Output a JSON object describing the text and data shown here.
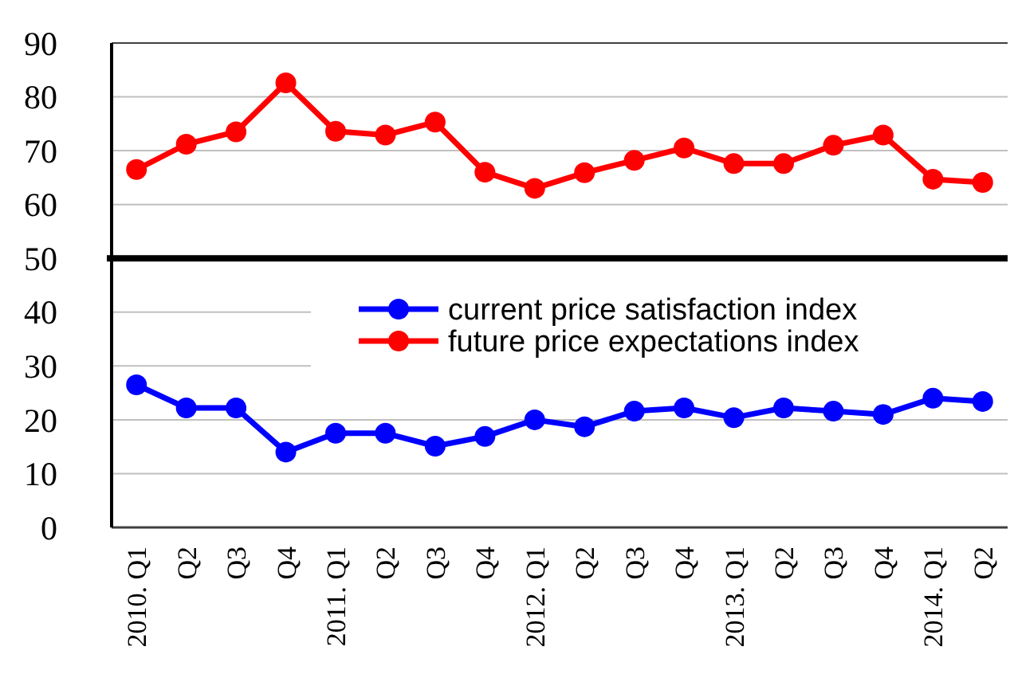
{
  "chart_data": {
    "type": "line",
    "categories": [
      "2010. Q1",
      "Q2",
      "Q3",
      "Q4",
      "2011. Q1",
      "Q2",
      "Q3",
      "Q4",
      "2012. Q1",
      "Q2",
      "Q3",
      "Q4",
      "2013. Q1",
      "Q2",
      "Q3",
      "Q4",
      "2014. Q1",
      "Q2"
    ],
    "series": [
      {
        "name": "current price satisfaction index",
        "color": "#0000ff",
        "values": [
          26.5,
          22.2,
          22.2,
          14,
          17.5,
          17.5,
          15.1,
          16.9,
          20,
          18.7,
          21.6,
          22.2,
          20.4,
          22.2,
          21.6,
          21,
          24,
          23.4
        ]
      },
      {
        "name": "future price expectations index",
        "color": "#ff0000",
        "values": [
          66.5,
          71.2,
          73.5,
          82.6,
          73.6,
          72.9,
          75.3,
          66,
          63,
          65.9,
          68.2,
          70.5,
          67.6,
          67.6,
          71,
          72.9,
          64.7,
          64.1
        ]
      }
    ],
    "ylim": [
      0,
      90
    ],
    "yticks": [
      0,
      10,
      20,
      30,
      40,
      50,
      60,
      70,
      80,
      90
    ],
    "grid": "y",
    "legend": "center right",
    "marker": "circle",
    "line_style": "solid",
    "ref_lines": [
      {
        "axis": "y",
        "value": 50,
        "color": "#000000"
      }
    ]
  }
}
